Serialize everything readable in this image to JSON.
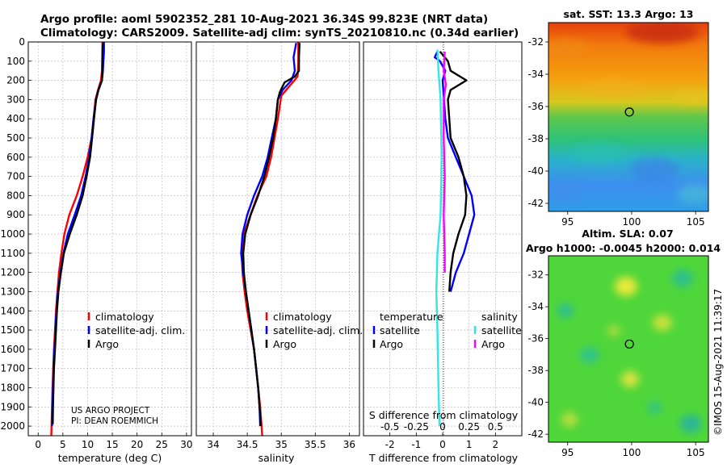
{
  "figure": {
    "title_line1": "Argo profile: aoml 5902352_281 10-Aug-2021 36.34S 99.823E (NRT data)",
    "title_line2": "Climatology: CARS2009. Satellite-adj clim: synTS_20210810.nc (0.34d earlier)",
    "credit_line1": "US ARGO PROJECT",
    "credit_line2": "PI: DEAN ROEMMICH",
    "imos_stamp": "©IMOS 15-Aug-2021 11:39:17",
    "colors": {
      "climatology": "#ff0000",
      "satellite": "#0000ff",
      "argo": "#000000",
      "sat_diff": "#33e6e6",
      "argo_sal_diff": "#ff00ff",
      "grid": "#b3b3b3"
    }
  },
  "chart_data": [
    {
      "id": "temperature",
      "type": "line",
      "xlabel": "temperature (deg C)",
      "ylabel": "",
      "xlim": [
        -2,
        31
      ],
      "ylim": [
        2050,
        0
      ],
      "xticks": [
        0,
        5,
        10,
        15,
        20,
        25,
        30
      ],
      "xtick_labels": [
        "0",
        "5",
        "10",
        "15",
        "20",
        "25",
        "30"
      ],
      "yticks": [
        0,
        100,
        200,
        300,
        400,
        500,
        600,
        700,
        800,
        900,
        1000,
        1100,
        1200,
        1300,
        1400,
        1500,
        1600,
        1700,
        1800,
        1900,
        2000
      ],
      "ytick_labels": [
        "0",
        "100",
        "200",
        "300",
        "400",
        "500",
        "600",
        "700",
        "800",
        "900",
        "1000",
        "1100",
        "1200",
        "1300",
        "1400",
        "1500",
        "1600",
        "1700",
        "1800",
        "1900",
        "2000"
      ],
      "grid": true,
      "legend": {
        "position": "lower-right",
        "entries": [
          "climatology",
          "satellite-adj. clim.",
          "Argo"
        ]
      },
      "series": [
        {
          "name": "climatology",
          "color": "#ff0000",
          "points": [
            [
              13.0,
              0
            ],
            [
              13.0,
              50
            ],
            [
              12.95,
              100
            ],
            [
              12.9,
              150
            ],
            [
              12.7,
              200
            ],
            [
              12.1,
              250
            ],
            [
              11.6,
              300
            ],
            [
              11.2,
              400
            ],
            [
              10.8,
              500
            ],
            [
              10.0,
              600
            ],
            [
              9.0,
              700
            ],
            [
              7.8,
              800
            ],
            [
              6.3,
              900
            ],
            [
              5.3,
              1000
            ],
            [
              4.7,
              1100
            ],
            [
              4.2,
              1200
            ],
            [
              3.9,
              1300
            ],
            [
              3.6,
              1400
            ],
            [
              3.4,
              1500
            ],
            [
              3.2,
              1600
            ],
            [
              3.05,
              1700
            ],
            [
              2.9,
              1800
            ],
            [
              2.8,
              1900
            ],
            [
              2.7,
              2000
            ],
            [
              2.65,
              2050
            ]
          ]
        },
        {
          "name": "satellite-adj. clim.",
          "color": "#0000ff",
          "points": [
            [
              13.3,
              0
            ],
            [
              13.3,
              50
            ],
            [
              13.2,
              100
            ],
            [
              13.1,
              150
            ],
            [
              12.9,
              200
            ],
            [
              12.2,
              250
            ],
            [
              11.7,
              300
            ],
            [
              11.2,
              400
            ],
            [
              10.8,
              500
            ],
            [
              10.3,
              600
            ],
            [
              9.6,
              700
            ],
            [
              8.7,
              800
            ],
            [
              7.4,
              900
            ],
            [
              6.0,
              1000
            ],
            [
              5.1,
              1100
            ],
            [
              4.5,
              1200
            ],
            [
              4.0,
              1300
            ],
            [
              3.7,
              1400
            ],
            [
              3.5,
              1500
            ],
            [
              3.3,
              1600
            ],
            [
              3.1,
              1700
            ],
            [
              3.0,
              1800
            ],
            [
              2.9,
              1900
            ],
            [
              2.8,
              2000
            ]
          ]
        },
        {
          "name": "Argo",
          "color": "#000000",
          "points": [
            [
              13.1,
              5
            ],
            [
              13.0,
              50
            ],
            [
              13.0,
              100
            ],
            [
              13.0,
              150
            ],
            [
              12.9,
              200
            ],
            [
              12.2,
              250
            ],
            [
              11.7,
              300
            ],
            [
              11.3,
              400
            ],
            [
              10.9,
              500
            ],
            [
              10.5,
              600
            ],
            [
              9.8,
              700
            ],
            [
              9.0,
              800
            ],
            [
              7.8,
              900
            ],
            [
              6.4,
              1000
            ],
            [
              5.2,
              1100
            ],
            [
              4.6,
              1200
            ],
            [
              4.1,
              1300
            ],
            [
              3.8,
              1400
            ],
            [
              3.6,
              1500
            ],
            [
              3.4,
              1600
            ],
            [
              3.2,
              1700
            ],
            [
              3.1,
              1800
            ],
            [
              3.0,
              1900
            ],
            [
              2.95,
              1990
            ]
          ]
        }
      ]
    },
    {
      "id": "salinity",
      "type": "line",
      "xlabel": "salinity",
      "ylabel": "",
      "xlim": [
        33.75,
        36.15
      ],
      "ylim": [
        2050,
        0
      ],
      "xticks": [
        34,
        34.5,
        35,
        35.5,
        36
      ],
      "xtick_labels": [
        "34",
        "34.5",
        "35",
        "35.5",
        "36"
      ],
      "grid": true,
      "legend": {
        "position": "lower-right",
        "entries": [
          "climatology",
          "satellite-adj. clim.",
          "Argo"
        ]
      },
      "series": [
        {
          "name": "climatology",
          "color": "#ff0000",
          "points": [
            [
              35.25,
              0
            ],
            [
              35.25,
              100
            ],
            [
              35.24,
              180
            ],
            [
              35.12,
              230
            ],
            [
              35.0,
              280
            ],
            [
              34.95,
              400
            ],
            [
              34.9,
              500
            ],
            [
              34.85,
              600
            ],
            [
              34.78,
              700
            ],
            [
              34.65,
              800
            ],
            [
              34.55,
              900
            ],
            [
              34.45,
              1000
            ],
            [
              34.42,
              1100
            ],
            [
              34.43,
              1200
            ],
            [
              34.46,
              1300
            ],
            [
              34.5,
              1400
            ],
            [
              34.55,
              1500
            ],
            [
              34.6,
              1600
            ],
            [
              34.63,
              1700
            ],
            [
              34.66,
              1800
            ],
            [
              34.69,
              1900
            ],
            [
              34.71,
              2000
            ],
            [
              34.72,
              2050
            ]
          ]
        },
        {
          "name": "satellite-adj. clim.",
          "color": "#0000ff",
          "points": [
            [
              35.22,
              5
            ],
            [
              35.18,
              80
            ],
            [
              35.2,
              150
            ],
            [
              35.15,
              200
            ],
            [
              35.02,
              250
            ],
            [
              34.95,
              300
            ],
            [
              34.92,
              400
            ],
            [
              34.86,
              500
            ],
            [
              34.8,
              600
            ],
            [
              34.72,
              700
            ],
            [
              34.6,
              800
            ],
            [
              34.5,
              900
            ],
            [
              34.43,
              1000
            ],
            [
              34.41,
              1100
            ],
            [
              34.44,
              1200
            ],
            [
              34.48,
              1300
            ],
            [
              34.52,
              1400
            ],
            [
              34.56,
              1500
            ],
            [
              34.6,
              1600
            ],
            [
              34.63,
              1700
            ],
            [
              34.66,
              1800
            ],
            [
              34.68,
              1900
            ],
            [
              34.69,
              2000
            ]
          ]
        },
        {
          "name": "Argo",
          "color": "#000000",
          "points": [
            [
              35.27,
              5
            ],
            [
              35.26,
              80
            ],
            [
              35.26,
              150
            ],
            [
              35.2,
              180
            ],
            [
              35.05,
              210
            ],
            [
              34.98,
              260
            ],
            [
              34.95,
              300
            ],
            [
              34.92,
              400
            ],
            [
              34.88,
              500
            ],
            [
              34.82,
              600
            ],
            [
              34.75,
              700
            ],
            [
              34.66,
              800
            ],
            [
              34.55,
              900
            ],
            [
              34.47,
              1000
            ],
            [
              34.44,
              1100
            ],
            [
              34.45,
              1200
            ],
            [
              34.48,
              1300
            ],
            [
              34.52,
              1400
            ],
            [
              34.56,
              1500
            ],
            [
              34.6,
              1600
            ],
            [
              34.63,
              1700
            ],
            [
              34.66,
              1800
            ],
            [
              34.68,
              1900
            ],
            [
              34.7,
              2000
            ]
          ]
        }
      ]
    },
    {
      "id": "difference",
      "type": "line",
      "xlabel": "T difference from climatology",
      "xlabel_top": "S difference from climatology",
      "xlim": [
        -3,
        3
      ],
      "ylim": [
        2050,
        0
      ],
      "xticks": [
        -2,
        -1,
        0,
        1,
        2
      ],
      "xtick_labels": [
        "-2",
        "-1",
        "0",
        "1",
        "2"
      ],
      "s_xticks": [
        -0.5,
        -0.25,
        0,
        0.25,
        0.5
      ],
      "s_xtick_labels": [
        "-0.5",
        "-0.25",
        "0",
        "0.25",
        "0.5"
      ],
      "grid": true,
      "legend": {
        "position": "lower",
        "temperature_header": "temperature",
        "salinity_header": "salinity",
        "entries": [
          "satellite",
          "Argo",
          "satellite",
          "Argo"
        ]
      },
      "series": [
        {
          "name": "T satellite",
          "color": "#0000ff",
          "points": [
            [
              -0.2,
              50
            ],
            [
              -0.3,
              80
            ],
            [
              -0.1,
              100
            ],
            [
              0.1,
              150
            ],
            [
              0.0,
              200
            ],
            [
              0.05,
              300
            ],
            [
              0.1,
              400
            ],
            [
              0.2,
              500
            ],
            [
              0.5,
              600
            ],
            [
              0.8,
              700
            ],
            [
              1.1,
              800
            ],
            [
              1.2,
              900
            ],
            [
              1.0,
              1000
            ],
            [
              0.8,
              1100
            ],
            [
              0.5,
              1200
            ],
            [
              0.3,
              1300
            ]
          ]
        },
        {
          "name": "T Argo",
          "color": "#000000",
          "points": [
            [
              -0.1,
              50
            ],
            [
              0.2,
              100
            ],
            [
              0.3,
              150
            ],
            [
              0.9,
              200
            ],
            [
              0.3,
              250
            ],
            [
              0.2,
              300
            ],
            [
              0.25,
              400
            ],
            [
              0.3,
              500
            ],
            [
              0.6,
              600
            ],
            [
              0.8,
              700
            ],
            [
              0.9,
              800
            ],
            [
              0.85,
              900
            ],
            [
              0.6,
              1000
            ],
            [
              0.4,
              1100
            ],
            [
              0.3,
              1200
            ],
            [
              0.25,
              1300
            ]
          ]
        },
        {
          "name": "S satellite",
          "color": "#33e6e6",
          "points": [
            [
              -0.05,
              40
            ],
            [
              -0.04,
              150
            ],
            [
              -0.02,
              300
            ],
            [
              -0.01,
              600
            ],
            [
              -0.02,
              900
            ],
            [
              -0.05,
              1100
            ],
            [
              -0.06,
              1300
            ],
            [
              -0.05,
              1500
            ],
            [
              -0.04,
              1800
            ],
            [
              -0.03,
              2000
            ]
          ]
        },
        {
          "name": "S Argo",
          "color": "#ff00ff",
          "points": [
            [
              0.02,
              50
            ],
            [
              0.01,
              150
            ],
            [
              0.03,
              220
            ],
            [
              0.01,
              300
            ],
            [
              0.01,
              500
            ],
            [
              0.02,
              700
            ],
            [
              0.01,
              900
            ],
            [
              0.02,
              1100
            ],
            [
              0.02,
              1200
            ]
          ]
        }
      ]
    },
    {
      "id": "sst_map",
      "type": "heatmap",
      "title": "sat. SST: 13.3 Argo: 13",
      "xlim": [
        93.5,
        106
      ],
      "ylim": [
        -42.5,
        -30.8
      ],
      "xticks": [
        95,
        100,
        105
      ],
      "xtick_labels": [
        "95",
        "100",
        "105"
      ],
      "yticks": [
        -32,
        -34,
        -36,
        -38,
        -40,
        -42
      ],
      "ytick_labels": [
        "-32",
        "-34",
        "-36",
        "-38",
        "-40",
        "-42"
      ],
      "marker": {
        "lon": 99.823,
        "lat": -36.34
      }
    },
    {
      "id": "sla_map",
      "type": "heatmap",
      "title": "Altim. SLA: 0.07",
      "subtitle": "Argo h1000: -0.0045 h2000: 0.014",
      "xlim": [
        93.5,
        106
      ],
      "ylim": [
        -42.5,
        -30.8
      ],
      "xticks": [
        95,
        100,
        105
      ],
      "xtick_labels": [
        "95",
        "100",
        "105"
      ],
      "yticks": [
        -32,
        -34,
        -36,
        -38,
        -40,
        -42
      ],
      "ytick_labels": [
        "-32",
        "-34",
        "-36",
        "-38",
        "-40",
        "-42"
      ],
      "marker": {
        "lon": 99.823,
        "lat": -36.34
      }
    }
  ]
}
